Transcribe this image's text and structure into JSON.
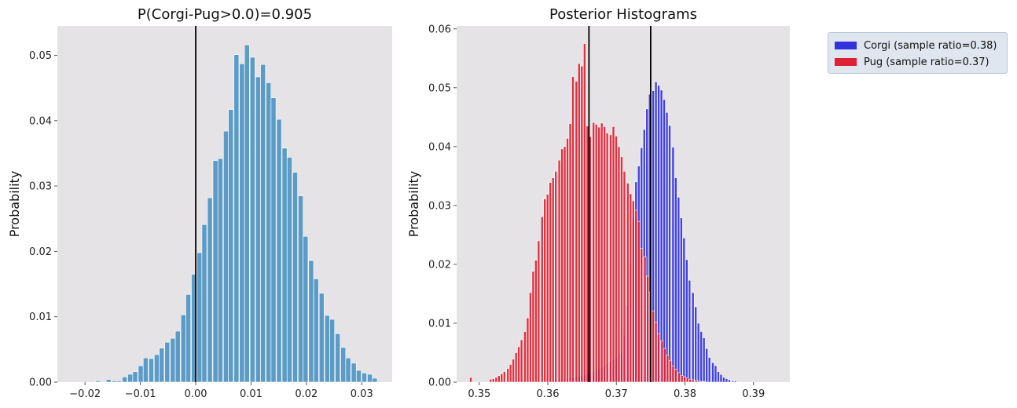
{
  "chart_data": [
    {
      "type": "bar",
      "title": "P(Corgi-Pug>0.0)=0.905",
      "xlabel": "",
      "ylabel": "Probability",
      "xlim": [
        -0.025,
        0.0355
      ],
      "ylim": [
        0,
        0.0545
      ],
      "x_ticks": [
        "−0.02",
        "−0.01",
        "0.00",
        "0.01",
        "0.02",
        "0.03"
      ],
      "x_tick_values": [
        -0.02,
        -0.01,
        0.0,
        0.01,
        0.02,
        0.03
      ],
      "y_ticks": [
        "0.00",
        "0.01",
        "0.02",
        "0.03",
        "0.04",
        "0.05"
      ],
      "y_tick_values": [
        0.0,
        0.01,
        0.02,
        0.03,
        0.04,
        0.05
      ],
      "reference_lines": [
        0.0
      ],
      "bin_width": 0.000962,
      "series": [
        {
          "color": "#5b9bc6",
          "x": [
            -0.0205,
            -0.0195,
            -0.0186,
            -0.0176,
            -0.0167,
            -0.0157,
            -0.0147,
            -0.0138,
            -0.0128,
            -0.0118,
            -0.0109,
            -0.0099,
            -0.009,
            -0.008,
            -0.007,
            -0.0061,
            -0.0051,
            -0.0041,
            -0.0032,
            -0.0022,
            -0.0013,
            -0.0003,
            0.0007,
            0.0016,
            0.0026,
            0.0036,
            0.0045,
            0.0055,
            0.0064,
            0.0074,
            0.0084,
            0.0093,
            0.0103,
            0.0113,
            0.0122,
            0.0132,
            0.0141,
            0.0151,
            0.0161,
            0.017,
            0.018,
            0.019,
            0.0199,
            0.0209,
            0.0218,
            0.0228,
            0.0238,
            0.0247,
            0.0257,
            0.0267,
            0.0276,
            0.0286,
            0.0295,
            0.0305,
            0.0315,
            0.0324
          ],
          "values": [
            0.0,
            0.0,
            0.0,
            0.0002,
            0.0001,
            0.0004,
            0.0002,
            0.0002,
            0.0008,
            0.0012,
            0.0016,
            0.0025,
            0.0037,
            0.0036,
            0.0042,
            0.0052,
            0.0061,
            0.0067,
            0.0078,
            0.0103,
            0.0134,
            0.0165,
            0.0198,
            0.0241,
            0.0282,
            0.0339,
            0.0342,
            0.0384,
            0.0417,
            0.0501,
            0.0487,
            0.0516,
            0.0497,
            0.0467,
            0.0486,
            0.0458,
            0.0435,
            0.0402,
            0.0358,
            0.0344,
            0.0321,
            0.0285,
            0.0223,
            0.0186,
            0.0158,
            0.0136,
            0.0102,
            0.0096,
            0.0074,
            0.0053,
            0.0037,
            0.0029,
            0.0018,
            0.0014,
            0.0012,
            0.0006
          ]
        }
      ]
    },
    {
      "type": "bar",
      "title": "Posterior Histograms",
      "xlabel": "",
      "ylabel": "Probability",
      "xlim": [
        0.3467,
        0.3953
      ],
      "ylim": [
        0,
        0.0605
      ],
      "x_ticks": [
        "0.35",
        "0.36",
        "0.37",
        "0.38",
        "0.39"
      ],
      "x_tick_values": [
        0.35,
        0.36,
        0.37,
        0.38,
        0.39
      ],
      "y_ticks": [
        "0.00",
        "0.01",
        "0.02",
        "0.03",
        "0.04",
        "0.05",
        "0.06"
      ],
      "y_tick_values": [
        0.0,
        0.01,
        0.02,
        0.03,
        0.04,
        0.05,
        0.06
      ],
      "reference_lines": [
        0.366,
        0.375
      ],
      "bin_width": 0.000415,
      "legend": {
        "position": "outside-top-right"
      },
      "series": [
        {
          "name": "Corgi (sample ratio=0.38)",
          "color": "#3333dd",
          "x": [
            0.36,
            0.3604,
            0.3609,
            0.3613,
            0.3617,
            0.3621,
            0.3625,
            0.3629,
            0.3633,
            0.3638,
            0.3642,
            0.3646,
            0.365,
            0.3654,
            0.3658,
            0.3662,
            0.3667,
            0.3671,
            0.3675,
            0.3679,
            0.3683,
            0.3687,
            0.3691,
            0.3696,
            0.37,
            0.3704,
            0.3708,
            0.3712,
            0.3716,
            0.372,
            0.3725,
            0.3729,
            0.3733,
            0.3737,
            0.3741,
            0.3745,
            0.3749,
            0.3754,
            0.3758,
            0.3762,
            0.3766,
            0.377,
            0.3774,
            0.3778,
            0.3783,
            0.3787,
            0.3791,
            0.3795,
            0.3799,
            0.3803,
            0.3807,
            0.3812,
            0.3816,
            0.382,
            0.3824,
            0.3828,
            0.3832,
            0.3836,
            0.3841,
            0.3845,
            0.3849,
            0.3853,
            0.3857,
            0.3861,
            0.3865,
            0.387,
            0.3874,
            0.3878,
            0.3882,
            0.3886,
            0.389,
            0.3894,
            0.3899,
            0.3903,
            0.3907
          ],
          "values": [
            0.0002,
            0.0002,
            0.0003,
            0.0004,
            0.0004,
            0.0005,
            0.0005,
            0.0006,
            0.0007,
            0.0008,
            0.0009,
            0.001,
            0.0011,
            0.0012,
            0.0014,
            0.0016,
            0.0018,
            0.002,
            0.0022,
            0.0025,
            0.0028,
            0.0031,
            0.0035,
            0.0038,
            0.0042,
            0.0046,
            0.0052,
            0.008,
            0.013,
            0.02,
            0.0275,
            0.034,
            0.0367,
            0.0398,
            0.0429,
            0.0464,
            0.0489,
            0.0495,
            0.051,
            0.0504,
            0.0496,
            0.048,
            0.0458,
            0.0436,
            0.0399,
            0.0347,
            0.0314,
            0.0279,
            0.0245,
            0.0208,
            0.0173,
            0.0152,
            0.0128,
            0.01,
            0.0086,
            0.0075,
            0.0057,
            0.0042,
            0.0033,
            0.0028,
            0.0018,
            0.0013,
            0.0008,
            0.0006,
            0.0004,
            0.0002,
            0.0002,
            0.0001,
            0.0001,
            0.0,
            0.0,
            0.0,
            0.0,
            0.0,
            0.0
          ]
        },
        {
          "name": "Pug (sample ratio=0.37)",
          "color": "#dd2233",
          "x": [
            0.3488,
            0.35,
            0.3517,
            0.3521,
            0.3525,
            0.3529,
            0.3533,
            0.3537,
            0.3542,
            0.3546,
            0.355,
            0.3554,
            0.3558,
            0.3562,
            0.3567,
            0.3571,
            0.3575,
            0.3579,
            0.3583,
            0.3587,
            0.3592,
            0.3596,
            0.36,
            0.3604,
            0.3608,
            0.3612,
            0.3617,
            0.3621,
            0.3625,
            0.3629,
            0.3633,
            0.3637,
            0.3642,
            0.3646,
            0.365,
            0.3654,
            0.3658,
            0.3662,
            0.3667,
            0.3671,
            0.3675,
            0.3679,
            0.3683,
            0.3687,
            0.3692,
            0.3696,
            0.37,
            0.3704,
            0.3708,
            0.3712,
            0.3717,
            0.3721,
            0.3725,
            0.3729,
            0.3733,
            0.3737,
            0.3742,
            0.3746,
            0.375,
            0.3754,
            0.3758,
            0.3762,
            0.3767,
            0.3771,
            0.3775,
            0.3779,
            0.3783,
            0.3787,
            0.3792,
            0.3796,
            0.38,
            0.3804,
            0.3808,
            0.3812,
            0.3817,
            0.3821,
            0.3825,
            0.3829
          ],
          "values": [
            0.0008,
            0.0001,
            0.0005,
            0.0006,
            0.0008,
            0.0011,
            0.0014,
            0.0018,
            0.0023,
            0.003,
            0.0039,
            0.005,
            0.006,
            0.0072,
            0.0086,
            0.0109,
            0.0152,
            0.0188,
            0.0207,
            0.024,
            0.0281,
            0.0311,
            0.0319,
            0.0339,
            0.0347,
            0.0358,
            0.0377,
            0.0396,
            0.04,
            0.0414,
            0.0439,
            0.0519,
            0.0511,
            0.0541,
            0.0537,
            0.0575,
            0.0435,
            0.0417,
            0.0441,
            0.0438,
            0.0433,
            0.044,
            0.0434,
            0.0423,
            0.042,
            0.0434,
            0.0418,
            0.04,
            0.0383,
            0.0358,
            0.0338,
            0.032,
            0.0308,
            0.0292,
            0.0273,
            0.0227,
            0.0213,
            0.018,
            0.0153,
            0.0121,
            0.0102,
            0.0082,
            0.007,
            0.0057,
            0.0046,
            0.0037,
            0.0027,
            0.0022,
            0.0016,
            0.0011,
            0.0009,
            0.0007,
            0.0005,
            0.0004,
            0.0003,
            0.0002,
            0.0001,
            0.0001
          ]
        }
      ]
    }
  ]
}
